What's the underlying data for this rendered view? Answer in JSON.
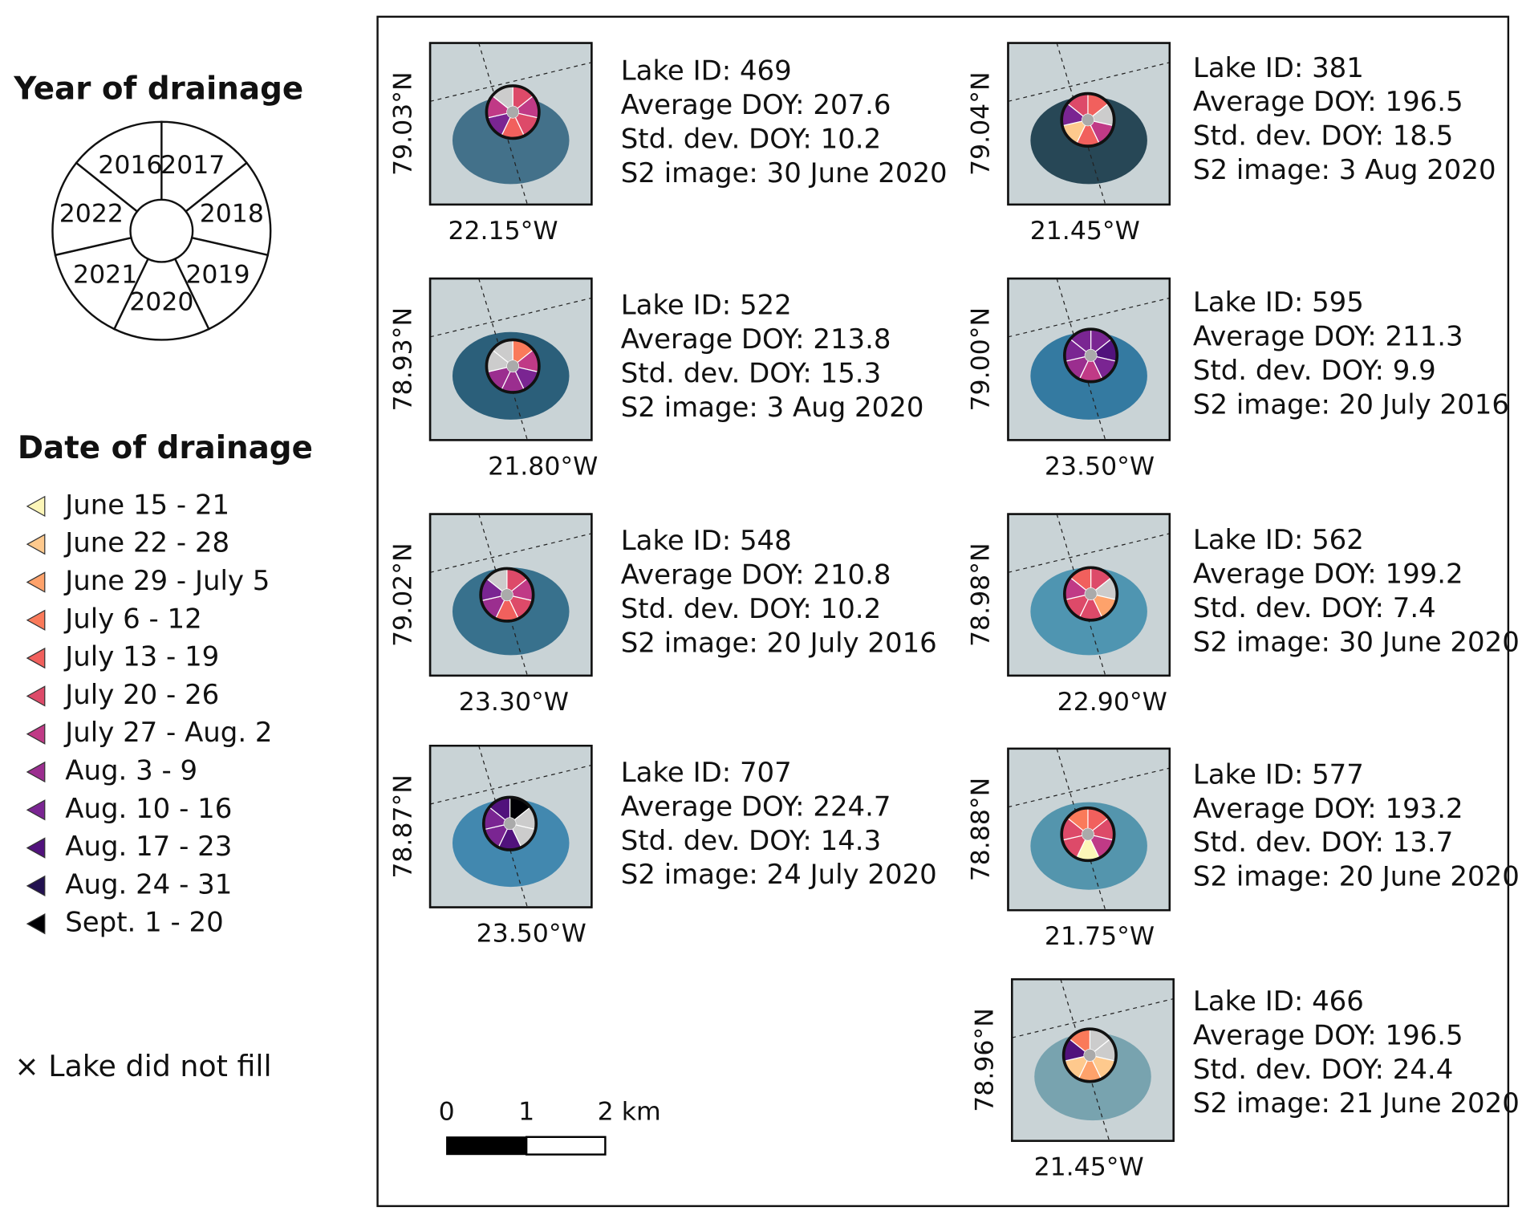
{
  "legend": {
    "year_title": "Year of drainage",
    "years": [
      "2017",
      "2018",
      "2019",
      "2020",
      "2021",
      "2022",
      "2016"
    ],
    "date_title": "Date of drainage",
    "dates": [
      {
        "label": "June 15 - 21",
        "color": "#fcf6b8"
      },
      {
        "label": "June 22 - 28",
        "color": "#fec98d"
      },
      {
        "label": "June 29 - July 5",
        "color": "#fea26b"
      },
      {
        "label": "July 6 - 12",
        "color": "#fa7a5a"
      },
      {
        "label": "July 13 - 19",
        "color": "#f1605d"
      },
      {
        "label": "July 20 - 26",
        "color": "#dd4a69"
      },
      {
        "label": "July 27 - Aug. 2",
        "color": "#c03a86"
      },
      {
        "label": "Aug. 3 - 9",
        "color": "#9b2e8f"
      },
      {
        "label": "Aug. 10 - 16",
        "color": "#7a2592"
      },
      {
        "label": "Aug. 17 - 23",
        "color": "#51127c"
      },
      {
        "label": "Aug. 24 - 31",
        "color": "#221150"
      },
      {
        "label": "Sept. 1 - 20",
        "color": "#000004"
      }
    ],
    "not_fill": "× Lake did not fill"
  },
  "panels": [
    {
      "lines": [
        "Lake ID: 469",
        "Average DOY: 207.6",
        "Std. dev. DOY: 10.2",
        "S2 image: 30 June 2020"
      ],
      "lat": "79.03°N",
      "lon": "22.15°W"
    },
    {
      "lines": [
        "Lake ID: 522",
        "Average DOY: 213.8",
        "Std. dev. DOY: 15.3",
        "S2 image: 3 Aug 2020"
      ],
      "lat": "78.93°N",
      "lon": "21.80°W"
    },
    {
      "lines": [
        "Lake ID: 548",
        "Average DOY: 210.8",
        "Std. dev. DOY: 10.2",
        "S2 image: 20 July 2016"
      ],
      "lat": "79.02°N",
      "lon": "23.30°W"
    },
    {
      "lines": [
        "Lake ID: 707",
        "Average DOY: 224.7",
        "Std. dev. DOY: 14.3",
        "S2 image: 24 July 2020"
      ],
      "lat": "78.87°N",
      "lon": "23.50°W"
    },
    {
      "lines": [
        "Lake ID: 381",
        "Average DOY: 196.5",
        "Std. dev. DOY: 18.5",
        "S2 image: 3 Aug 2020"
      ],
      "lat": "79.04°N",
      "lon": "21.45°W"
    },
    {
      "lines": [
        "Lake ID: 595",
        "Average DOY: 211.3",
        "Std. dev. DOY: 9.9",
        "S2 image: 20 July 2016"
      ],
      "lat": "79.00°N",
      "lon": "23.50°W"
    },
    {
      "lines": [
        "Lake ID: 562",
        "Average DOY: 199.2",
        "Std. dev. DOY: 7.4",
        "S2 image: 30 June 2020"
      ],
      "lat": "78.98°N",
      "lon": "22.90°W"
    },
    {
      "lines": [
        "Lake ID: 577",
        "Average DOY: 193.2",
        "Std. dev. DOY: 13.7",
        "S2 image: 20 June 2020"
      ],
      "lat": "78.88°N",
      "lon": "21.75°W"
    },
    {
      "lines": [
        "Lake ID: 466",
        "Average DOY: 196.5",
        "Std. dev. DOY: 24.4",
        "S2 image: 21 June 2020"
      ],
      "lat": "78.96°N",
      "lon": "21.45°W"
    }
  ],
  "scale": {
    "labels": [
      "0",
      "1",
      "2 km"
    ]
  }
}
